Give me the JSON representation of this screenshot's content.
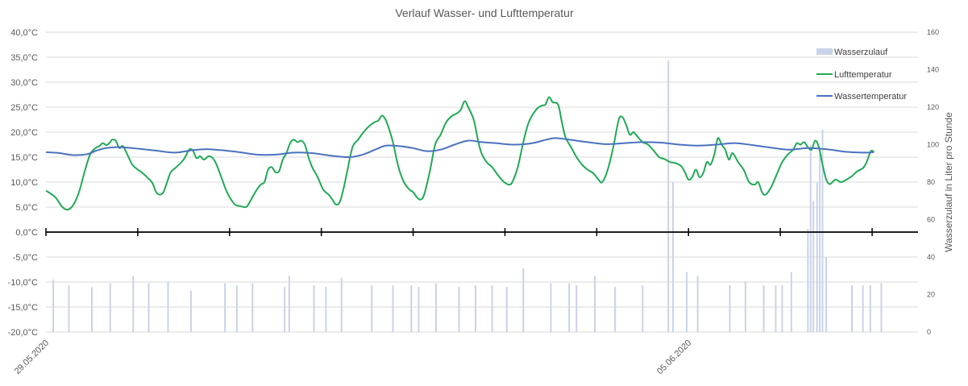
{
  "chart_data": {
    "type": "line",
    "title": "Verlauf Wasser- und Lufttemperatur",
    "ylabel": "",
    "y2label": "Wasserzulauf in Liter pro Stunde",
    "ylim": [
      -20,
      40
    ],
    "y2lim": [
      0,
      160
    ],
    "yticks": [
      "40,0°C",
      "35,0°C",
      "30,0°C",
      "25,0°C",
      "20,0°C",
      "15,0°C",
      "10,0°C",
      "5,0°C",
      "0,0°C",
      "-5,0°C",
      "-10,0°C",
      "-15,0°C",
      "-20,0°C"
    ],
    "y2ticks": [
      "160",
      "140",
      "120",
      "100",
      "80",
      "60",
      "40",
      "20",
      "0"
    ],
    "xlim_days": [
      0,
      9.5
    ],
    "date_labels": [
      {
        "day": 0,
        "text": "29.05.2020"
      },
      {
        "day": 7,
        "text": "05.06.2020"
      }
    ],
    "legend_position": "top-right",
    "colors": {
      "luft": "#1faa55",
      "wasser": "#4a72bf",
      "zulauf": "#c9d3e8",
      "grid": "#d9d9d9",
      "axis": "#000000"
    },
    "series": [
      {
        "name": "Lufttemperatur",
        "kind": "line",
        "axis": "left",
        "points": [
          [
            0.0,
            8.3
          ],
          [
            0.1,
            7.0
          ],
          [
            0.18,
            5.0
          ],
          [
            0.24,
            4.5
          ],
          [
            0.3,
            5.5
          ],
          [
            0.36,
            8.0
          ],
          [
            0.42,
            12.0
          ],
          [
            0.48,
            15.5
          ],
          [
            0.54,
            16.8
          ],
          [
            0.58,
            17.2
          ],
          [
            0.62,
            17.8
          ],
          [
            0.66,
            17.4
          ],
          [
            0.7,
            18.0
          ],
          [
            0.72,
            18.5
          ],
          [
            0.76,
            18.3
          ],
          [
            0.8,
            16.8
          ],
          [
            0.84,
            17.2
          ],
          [
            0.9,
            15.0
          ],
          [
            0.94,
            13.5
          ],
          [
            1.0,
            12.5
          ],
          [
            1.04,
            12.0
          ],
          [
            1.1,
            11.0
          ],
          [
            1.16,
            9.8
          ],
          [
            1.2,
            8.0
          ],
          [
            1.24,
            7.5
          ],
          [
            1.28,
            8.0
          ],
          [
            1.32,
            10.0
          ],
          [
            1.36,
            12.0
          ],
          [
            1.42,
            13.0
          ],
          [
            1.5,
            14.5
          ],
          [
            1.56,
            16.5
          ],
          [
            1.6,
            16.3
          ],
          [
            1.64,
            14.8
          ],
          [
            1.68,
            15.2
          ],
          [
            1.72,
            14.5
          ],
          [
            1.78,
            15.2
          ],
          [
            1.84,
            14.2
          ],
          [
            1.9,
            11.5
          ],
          [
            1.96,
            8.5
          ],
          [
            2.0,
            7.0
          ],
          [
            2.06,
            5.5
          ],
          [
            2.12,
            5.2
          ],
          [
            2.18,
            5.0
          ],
          [
            2.22,
            6.0
          ],
          [
            2.28,
            8.0
          ],
          [
            2.34,
            9.5
          ],
          [
            2.38,
            10.0
          ],
          [
            2.42,
            12.5
          ],
          [
            2.46,
            13.0
          ],
          [
            2.5,
            12.0
          ],
          [
            2.54,
            12.2
          ],
          [
            2.58,
            14.5
          ],
          [
            2.62,
            15.8
          ],
          [
            2.66,
            17.8
          ],
          [
            2.7,
            18.5
          ],
          [
            2.74,
            18.0
          ],
          [
            2.78,
            18.3
          ],
          [
            2.82,
            17.5
          ],
          [
            2.86,
            15.0
          ],
          [
            2.9,
            13.0
          ],
          [
            2.96,
            11.0
          ],
          [
            3.02,
            8.5
          ],
          [
            3.08,
            7.5
          ],
          [
            3.12,
            6.5
          ],
          [
            3.16,
            5.5
          ],
          [
            3.2,
            6.0
          ],
          [
            3.24,
            8.5
          ],
          [
            3.28,
            12.0
          ],
          [
            3.34,
            17.0
          ],
          [
            3.4,
            18.5
          ],
          [
            3.46,
            20.0
          ],
          [
            3.52,
            21.2
          ],
          [
            3.58,
            22.0
          ],
          [
            3.62,
            22.3
          ],
          [
            3.66,
            23.3
          ],
          [
            3.7,
            22.5
          ],
          [
            3.74,
            20.5
          ],
          [
            3.78,
            18.0
          ],
          [
            3.84,
            13.0
          ],
          [
            3.9,
            10.0
          ],
          [
            3.96,
            8.5
          ],
          [
            4.0,
            8.0
          ],
          [
            4.04,
            7.0
          ],
          [
            4.08,
            6.5
          ],
          [
            4.12,
            7.5
          ],
          [
            4.18,
            12.0
          ],
          [
            4.24,
            17.5
          ],
          [
            4.3,
            19.5
          ],
          [
            4.36,
            22.0
          ],
          [
            4.42,
            23.2
          ],
          [
            4.48,
            23.8
          ],
          [
            4.52,
            24.5
          ],
          [
            4.56,
            26.2
          ],
          [
            4.6,
            25.0
          ],
          [
            4.66,
            22.5
          ],
          [
            4.7,
            19.0
          ],
          [
            4.74,
            16.0
          ],
          [
            4.8,
            14.0
          ],
          [
            4.86,
            13.0
          ],
          [
            4.92,
            11.5
          ],
          [
            4.98,
            10.2
          ],
          [
            5.04,
            9.5
          ],
          [
            5.08,
            10.0
          ],
          [
            5.14,
            13.0
          ],
          [
            5.2,
            18.0
          ],
          [
            5.26,
            22.0
          ],
          [
            5.34,
            24.5
          ],
          [
            5.4,
            25.3
          ],
          [
            5.44,
            25.5
          ],
          [
            5.48,
            27.0
          ],
          [
            5.52,
            26.0
          ],
          [
            5.58,
            25.5
          ],
          [
            5.62,
            22.0
          ],
          [
            5.66,
            19.0
          ],
          [
            5.72,
            17.0
          ],
          [
            5.78,
            15.0
          ],
          [
            5.84,
            13.5
          ],
          [
            5.9,
            12.5
          ],
          [
            5.96,
            11.8
          ],
          [
            6.02,
            10.5
          ],
          [
            6.06,
            10.0
          ],
          [
            6.12,
            12.5
          ],
          [
            6.18,
            17.0
          ],
          [
            6.24,
            22.5
          ],
          [
            6.28,
            23.0
          ],
          [
            6.32,
            21.5
          ],
          [
            6.36,
            19.5
          ],
          [
            6.4,
            20.0
          ],
          [
            6.44,
            19.2
          ],
          [
            6.5,
            18.0
          ],
          [
            6.56,
            17.5
          ],
          [
            6.62,
            16.3
          ],
          [
            6.68,
            15.0
          ],
          [
            6.74,
            14.6
          ],
          [
            6.8,
            14.0
          ],
          [
            6.86,
            13.8
          ],
          [
            6.92,
            13.2
          ],
          [
            6.96,
            12.0
          ],
          [
            7.0,
            10.5
          ],
          [
            7.04,
            11.0
          ],
          [
            7.08,
            12.5
          ],
          [
            7.12,
            11.0
          ],
          [
            7.16,
            11.8
          ],
          [
            7.2,
            14.0
          ],
          [
            7.24,
            13.5
          ],
          [
            7.28,
            15.5
          ],
          [
            7.32,
            18.8
          ],
          [
            7.36,
            17.5
          ],
          [
            7.4,
            16.5
          ],
          [
            7.44,
            14.5
          ],
          [
            7.48,
            15.8
          ],
          [
            7.54,
            14.0
          ],
          [
            7.6,
            12.5
          ],
          [
            7.66,
            10.0
          ],
          [
            7.72,
            9.5
          ],
          [
            7.76,
            10.0
          ],
          [
            7.8,
            8.0
          ],
          [
            7.84,
            7.5
          ],
          [
            7.9,
            9.0
          ],
          [
            7.96,
            11.5
          ],
          [
            8.02,
            14.0
          ],
          [
            8.08,
            15.5
          ],
          [
            8.14,
            16.5
          ],
          [
            8.18,
            17.8
          ],
          [
            8.22,
            17.5
          ],
          [
            8.26,
            18.0
          ],
          [
            8.3,
            17.0
          ],
          [
            8.34,
            16.5
          ],
          [
            8.38,
            18.3
          ],
          [
            8.42,
            17.0
          ],
          [
            8.46,
            13.5
          ],
          [
            8.5,
            10.5
          ],
          [
            8.54,
            9.6
          ],
          [
            8.6,
            10.5
          ],
          [
            8.66,
            10.0
          ],
          [
            8.72,
            10.5
          ],
          [
            8.78,
            11.2
          ],
          [
            8.84,
            12.2
          ],
          [
            8.9,
            12.8
          ],
          [
            8.94,
            14.0
          ],
          [
            8.98,
            16.0
          ],
          [
            9.0,
            16.3
          ],
          [
            9.02,
            16.0
          ]
        ]
      },
      {
        "name": "Wassertemperatur",
        "kind": "line",
        "axis": "left",
        "points": [
          [
            0.0,
            16.0
          ],
          [
            0.15,
            15.8
          ],
          [
            0.3,
            15.4
          ],
          [
            0.45,
            15.6
          ],
          [
            0.55,
            16.3
          ],
          [
            0.65,
            16.8
          ],
          [
            0.8,
            17.0
          ],
          [
            1.0,
            16.7
          ],
          [
            1.2,
            16.3
          ],
          [
            1.4,
            15.9
          ],
          [
            1.6,
            16.4
          ],
          [
            1.75,
            16.6
          ],
          [
            1.9,
            16.4
          ],
          [
            2.1,
            16.0
          ],
          [
            2.3,
            15.5
          ],
          [
            2.5,
            15.5
          ],
          [
            2.7,
            15.9
          ],
          [
            2.9,
            15.8
          ],
          [
            3.1,
            15.3
          ],
          [
            3.3,
            15.0
          ],
          [
            3.45,
            15.5
          ],
          [
            3.6,
            16.6
          ],
          [
            3.7,
            17.3
          ],
          [
            3.85,
            17.2
          ],
          [
            4.0,
            16.8
          ],
          [
            4.15,
            16.2
          ],
          [
            4.3,
            16.5
          ],
          [
            4.45,
            17.5
          ],
          [
            4.6,
            18.3
          ],
          [
            4.75,
            18.0
          ],
          [
            4.9,
            17.8
          ],
          [
            5.1,
            17.5
          ],
          [
            5.3,
            17.8
          ],
          [
            5.45,
            18.5
          ],
          [
            5.55,
            18.8
          ],
          [
            5.7,
            18.5
          ],
          [
            5.9,
            18.0
          ],
          [
            6.1,
            17.6
          ],
          [
            6.3,
            17.8
          ],
          [
            6.5,
            18.0
          ],
          [
            6.7,
            17.9
          ],
          [
            6.9,
            17.5
          ],
          [
            7.1,
            17.3
          ],
          [
            7.3,
            17.5
          ],
          [
            7.5,
            17.8
          ],
          [
            7.7,
            17.4
          ],
          [
            7.9,
            16.9
          ],
          [
            8.1,
            16.5
          ],
          [
            8.3,
            16.8
          ],
          [
            8.5,
            16.6
          ],
          [
            8.7,
            16.1
          ],
          [
            8.9,
            15.9
          ],
          [
            9.02,
            16.0
          ]
        ]
      },
      {
        "name": "Wasserzulauf",
        "kind": "bar",
        "axis": "right",
        "points": [
          [
            0.08,
            28
          ],
          [
            0.25,
            25
          ],
          [
            0.5,
            24
          ],
          [
            0.7,
            26
          ],
          [
            0.95,
            30
          ],
          [
            1.12,
            26
          ],
          [
            1.33,
            27
          ],
          [
            1.58,
            22
          ],
          [
            1.95,
            26
          ],
          [
            2.08,
            25
          ],
          [
            2.25,
            26
          ],
          [
            2.6,
            24
          ],
          [
            2.65,
            30
          ],
          [
            2.92,
            25
          ],
          [
            3.05,
            24
          ],
          [
            3.22,
            29
          ],
          [
            3.55,
            25
          ],
          [
            3.78,
            25
          ],
          [
            3.98,
            25
          ],
          [
            4.06,
            24
          ],
          [
            4.25,
            26
          ],
          [
            4.5,
            24
          ],
          [
            4.68,
            25
          ],
          [
            4.86,
            25
          ],
          [
            5.02,
            24
          ],
          [
            5.2,
            34
          ],
          [
            5.5,
            26
          ],
          [
            5.7,
            26
          ],
          [
            5.78,
            25
          ],
          [
            5.98,
            30
          ],
          [
            6.2,
            24
          ],
          [
            6.5,
            25
          ],
          [
            6.78,
            145
          ],
          [
            6.83,
            80
          ],
          [
            6.98,
            32
          ],
          [
            7.1,
            30
          ],
          [
            7.45,
            25
          ],
          [
            7.62,
            27
          ],
          [
            7.82,
            25
          ],
          [
            7.95,
            25
          ],
          [
            8.02,
            25
          ],
          [
            8.12,
            32
          ],
          [
            8.3,
            55
          ],
          [
            8.33,
            100
          ],
          [
            8.36,
            70
          ],
          [
            8.4,
            80
          ],
          [
            8.43,
            95
          ],
          [
            8.46,
            108
          ],
          [
            8.5,
            40
          ],
          [
            8.78,
            25
          ],
          [
            8.9,
            25
          ],
          [
            8.98,
            25
          ],
          [
            9.1,
            26
          ]
        ]
      }
    ]
  }
}
